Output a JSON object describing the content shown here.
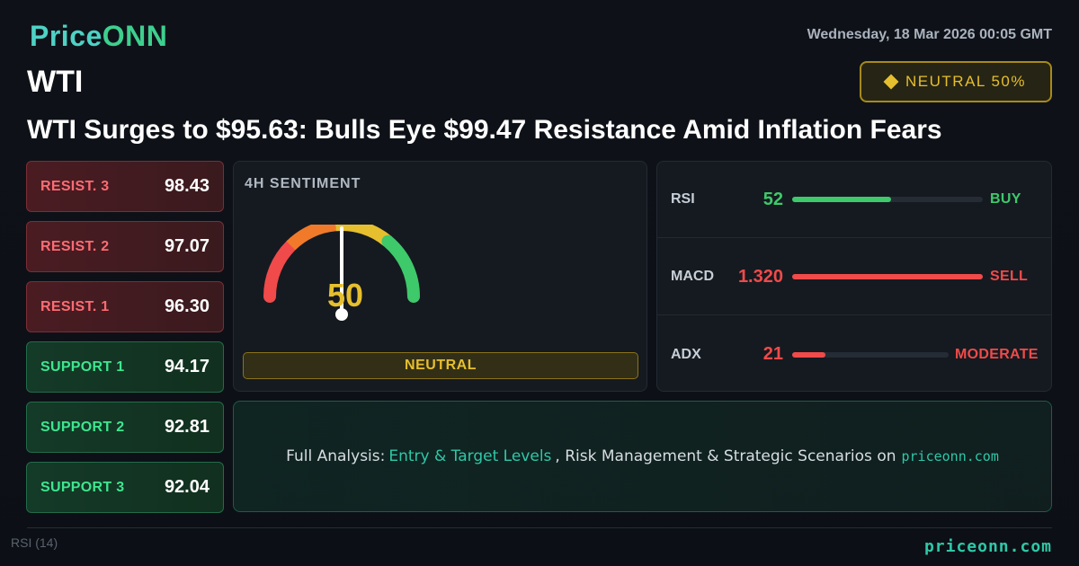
{
  "brand": {
    "logo_main": "Price",
    "logo_accent": "ONN"
  },
  "header": {
    "datetime": "Wednesday, 18 Mar 2026 00:05 GMT",
    "symbol": "WTI",
    "sentiment_badge": "NEUTRAL 50%",
    "headline": "WTI Surges to $95.63: Bulls Eye $99.47 Resistance Amid Inflation Fears"
  },
  "levels": [
    {
      "label": "RESIST. 3",
      "value": "98.43",
      "kind": "resist"
    },
    {
      "label": "RESIST. 2",
      "value": "97.07",
      "kind": "resist"
    },
    {
      "label": "RESIST. 1",
      "value": "96.30",
      "kind": "resist"
    },
    {
      "label": "SUPPORT 1",
      "value": "94.17",
      "kind": "support"
    },
    {
      "label": "SUPPORT 2",
      "value": "92.81",
      "kind": "support"
    },
    {
      "label": "SUPPORT 3",
      "value": "92.04",
      "kind": "support"
    }
  ],
  "gauge": {
    "title": "4H SENTIMENT",
    "value": "50",
    "value_fraction": 0.5,
    "label": "NEUTRAL",
    "colors": {
      "low": "#f04a4a",
      "mid_low": "#f07a2a",
      "mid": "#e6bf2e",
      "high": "#3ec96b"
    }
  },
  "indicators": [
    {
      "name": "RSI",
      "value": "52",
      "fill_fraction": 0.52,
      "signal": "BUY",
      "color": "green"
    },
    {
      "name": "MACD",
      "value": "1.320",
      "fill_fraction": 1.0,
      "signal": "SELL",
      "color": "red"
    },
    {
      "name": "ADX",
      "value": "21",
      "fill_fraction": 0.21,
      "signal": "MODERATE",
      "color": "red"
    }
  ],
  "cta": {
    "prefix": "Full Analysis:",
    "highlight": "Entry & Target Levels",
    "middle": ", Risk Management & Strategic Scenarios on",
    "site": "priceonn.com"
  },
  "footer": {
    "rsi_label": "RSI",
    "rsi_period": "(14)",
    "site": "priceonn.com"
  },
  "colors": {
    "accent": "#2ec8a8",
    "neutral": "#e6bf2e",
    "bullish": "#3ec96b",
    "bearish": "#f04a4a"
  }
}
